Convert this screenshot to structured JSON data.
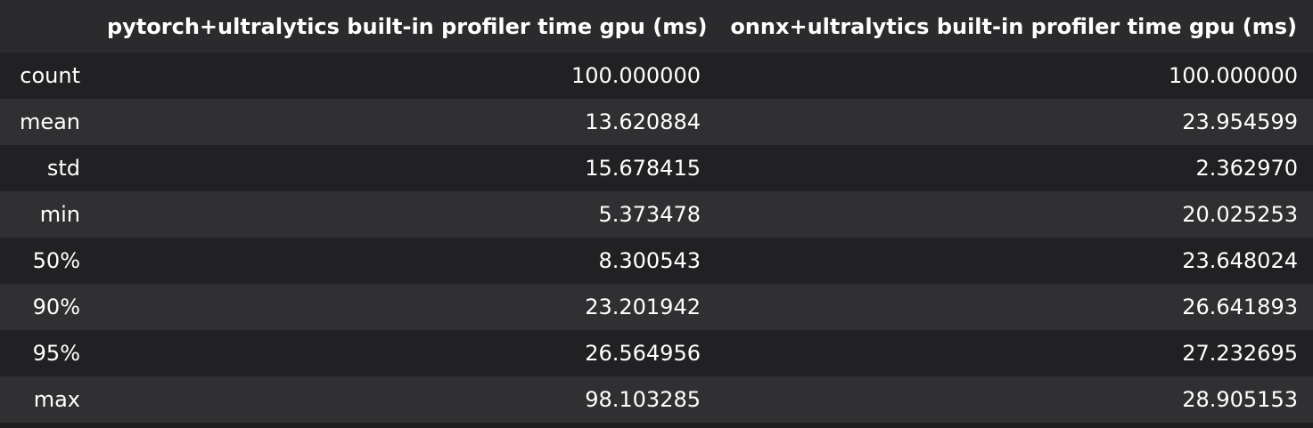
{
  "table": {
    "corner": "",
    "columns": [
      "pytorch+ultralytics built-in profiler time gpu (ms)",
      "onnx+ultralytics built-in profiler time gpu (ms)"
    ],
    "rows": [
      {
        "label": "count",
        "values": [
          "100.000000",
          "100.000000"
        ]
      },
      {
        "label": "mean",
        "values": [
          "13.620884",
          "23.954599"
        ]
      },
      {
        "label": "std",
        "values": [
          "15.678415",
          "2.362970"
        ]
      },
      {
        "label": "min",
        "values": [
          "5.373478",
          "20.025253"
        ]
      },
      {
        "label": "50%",
        "values": [
          "8.300543",
          "23.648024"
        ]
      },
      {
        "label": "90%",
        "values": [
          "23.201942",
          "26.641893"
        ]
      },
      {
        "label": "95%",
        "values": [
          "26.564956",
          "27.232695"
        ]
      },
      {
        "label": "max",
        "values": [
          "98.103285",
          "28.905153"
        ]
      }
    ]
  },
  "colors": {
    "background": "#1e1e1e",
    "header_bg": "#2b2b2d",
    "row_dark": "#212023",
    "row_light": "#303033",
    "text": "#ffffff"
  }
}
